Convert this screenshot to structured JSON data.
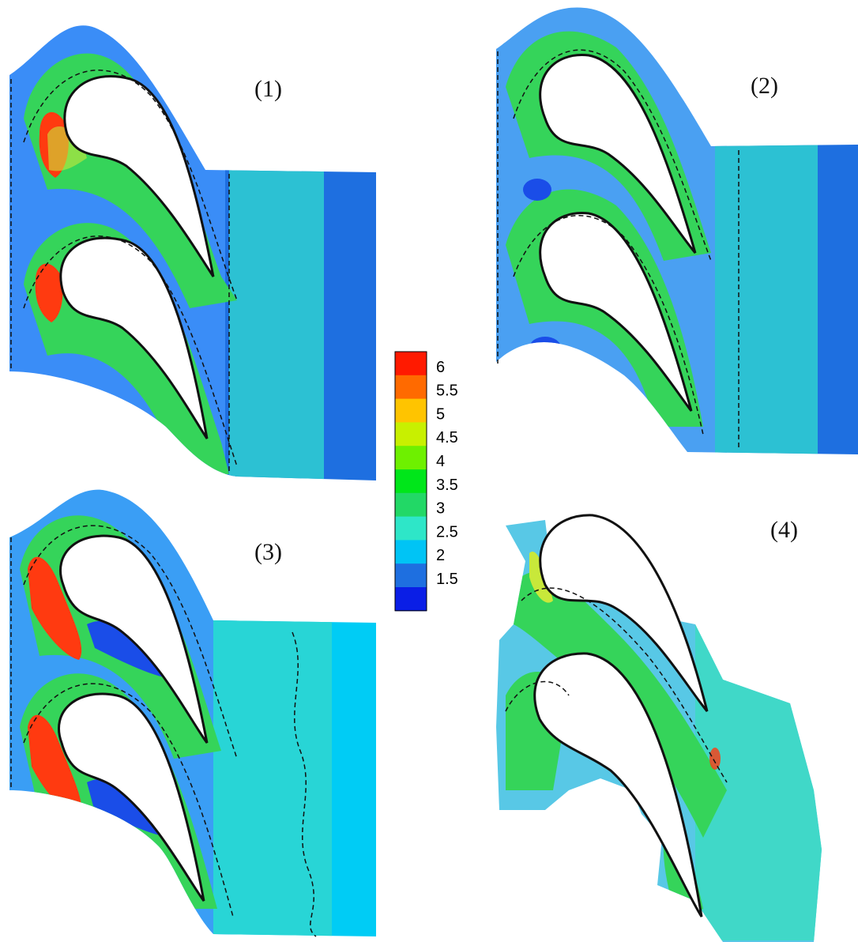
{
  "figure": {
    "panels": [
      {
        "label": "(1)",
        "inlet_color": "#3a8df7",
        "outlet_color": "#1e6fe0"
      },
      {
        "label": "(2)",
        "inlet_color": "#4aa0f2",
        "outlet_color": "#1e6fe0"
      },
      {
        "label": "(3)",
        "inlet_color": "#3a9ef5",
        "outlet_color": "#00ccf5"
      },
      {
        "label": "(4)",
        "inlet_color": "#58c8e6",
        "outlet_color": "#40d8c8"
      }
    ],
    "colorbar": {
      "levels": [
        "6",
        "5.5",
        "5",
        "4.5",
        "4",
        "3.5",
        "3",
        "2.5",
        "2",
        "1.5"
      ],
      "colors": [
        "#ff1a00",
        "#ff6a00",
        "#ffc400",
        "#c8f000",
        "#6ef000",
        "#00e61a",
        "#22d866",
        "#2ee6c8",
        "#00c4f5",
        "#1e6fe0",
        "#0a1ee6"
      ]
    },
    "palette": {
      "high": "#ff3a10",
      "mid_high": "#c8e83a",
      "mid": "#35d45a",
      "low": "#2fd6d0",
      "lowest": "#1a4de8",
      "blade": "#ffffff",
      "contour": "#111111"
    }
  }
}
